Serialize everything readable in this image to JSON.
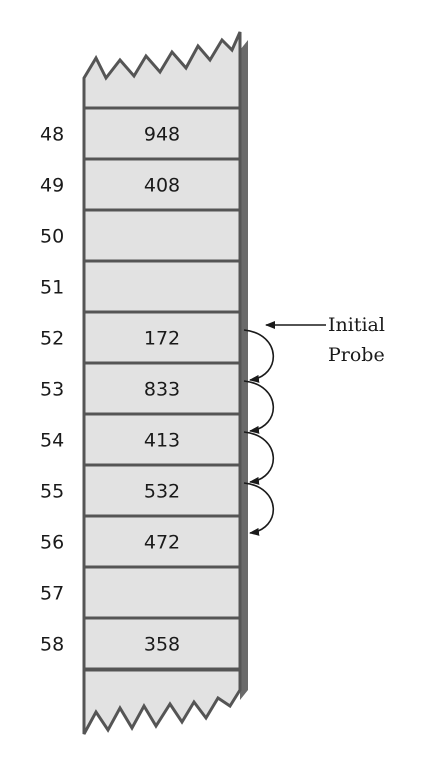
{
  "cells": [
    {
      "index": "48",
      "value": "948"
    },
    {
      "index": "49",
      "value": "408"
    },
    {
      "index": "50",
      "value": ""
    },
    {
      "index": "51",
      "value": ""
    },
    {
      "index": "52",
      "value": "172"
    },
    {
      "index": "53",
      "value": "833"
    },
    {
      "index": "54",
      "value": "413"
    },
    {
      "index": "55",
      "value": "532"
    },
    {
      "index": "56",
      "value": "472"
    },
    {
      "index": "57",
      "value": ""
    },
    {
      "index": "58",
      "value": "358"
    }
  ],
  "annotation": {
    "line1": "Initial",
    "line2": "Probe"
  },
  "colors": {
    "cell_fill": "#e2e2e2",
    "line": "#555555",
    "shadow": "#6a6a6a",
    "text": "#1a1a1a",
    "arrow": "#1a1a1a"
  }
}
